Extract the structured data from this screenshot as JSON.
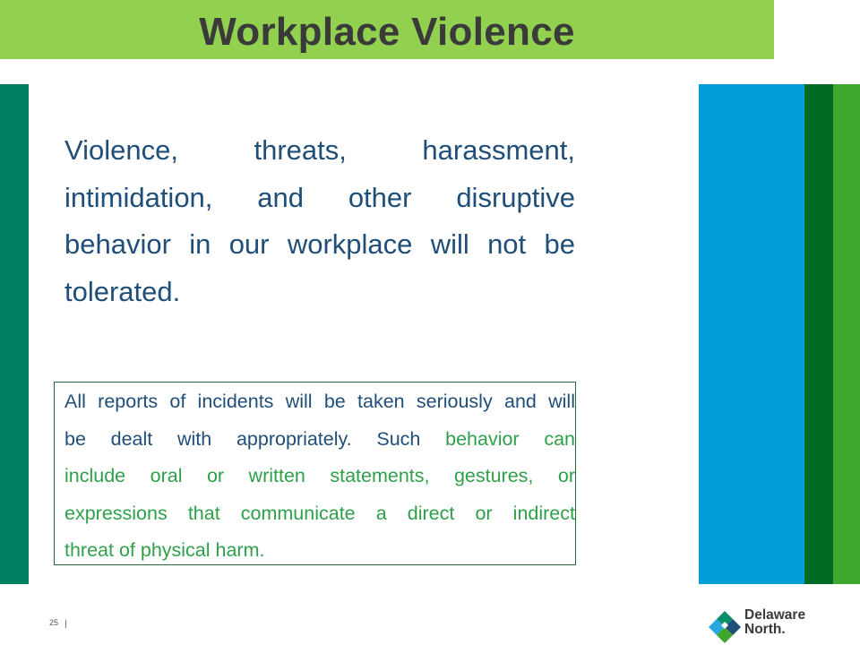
{
  "slide": {
    "title": "Workplace Violence",
    "page_number": "25",
    "colors": {
      "title_bar": "#92d050",
      "body_text": "#1f4e79",
      "accent_green_text": "#2fa04a",
      "stripe_left": "#008060",
      "stripe_blue": "#009fd9",
      "stripe_dark_green": "#006b25",
      "stripe_green": "#3ea72d"
    }
  },
  "main_statement": {
    "lines": [
      [
        "Violence,",
        "threats,",
        "harassment,"
      ],
      [
        "intimidation,",
        "and",
        "other",
        "disruptive"
      ],
      [
        "behavior",
        "in",
        "our",
        "workplace",
        "will",
        "not",
        "be"
      ],
      [
        "tolerated."
      ]
    ]
  },
  "notice_box": {
    "lines": [
      {
        "blue": "All reports of incidents will be taken seriously and will",
        "green": ""
      },
      {
        "blue": "be dealt with appropriately.  Such",
        "green": "behavior can"
      },
      {
        "blue": "",
        "green": "include oral or written statements, gestures, or"
      },
      {
        "blue": "",
        "green": "expressions that communicate a direct or indirect"
      },
      {
        "blue": "",
        "green": "threat of physical harm."
      }
    ]
  },
  "logo": {
    "line1": "Delaware",
    "line2": "North.",
    "icon": "delaware-north-diamond-icon"
  }
}
